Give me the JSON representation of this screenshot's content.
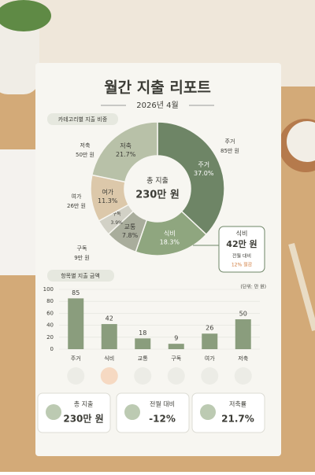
{
  "header": {
    "title": "월간 지출 리포트",
    "date": "2026년 4월"
  },
  "chart_data": [
    {
      "type": "donut",
      "title": "카테고리별 지출 비중",
      "categories": [
        "주거",
        "식비",
        "교통",
        "구독",
        "여가",
        "저축"
      ],
      "values": [
        37.0,
        18.3,
        7.8,
        3.9,
        11.3,
        21.7
      ],
      "value_labels": [
        "37.0%",
        "18.3%",
        "7.8%",
        "3.9%",
        "11.3%",
        "21.7%"
      ],
      "colors": [
        "#6e8566",
        "#8fa67f",
        "#a9ad9c",
        "#d2d1c6",
        "#dcc8aa",
        "#b8c1a8"
      ],
      "center_label": "총 지출",
      "center_value": "230만 원",
      "outer_labels": [
        {
          "name": "주거",
          "amount": "85만 원"
        },
        {
          "name": "저축",
          "amount": "50만 원"
        },
        {
          "name": "여가",
          "amount": "26만 원"
        },
        {
          "name": "구독",
          "amount": "9만 원"
        }
      ],
      "callout": {
        "name": "식비",
        "amount": "42만 원",
        "note": "전월 대비",
        "change": "12% 절감"
      }
    },
    {
      "type": "bar",
      "title": "항목별 지출 금액",
      "unit": "(단위: 만 원)",
      "categories": [
        "주거",
        "식비",
        "교통",
        "구독",
        "여가",
        "저축"
      ],
      "values": [
        85,
        42,
        18,
        9,
        26,
        50
      ],
      "color": "#8a9d7d",
      "ylim": [
        0,
        100
      ],
      "yticks": [
        0,
        20,
        40,
        60,
        80,
        100
      ],
      "grid": true
    }
  ],
  "summary": [
    {
      "label": "총 지출",
      "value": "230만 원"
    },
    {
      "label": "전월 대비",
      "value": "-12%"
    },
    {
      "label": "저축률",
      "value": "21.7%"
    }
  ]
}
